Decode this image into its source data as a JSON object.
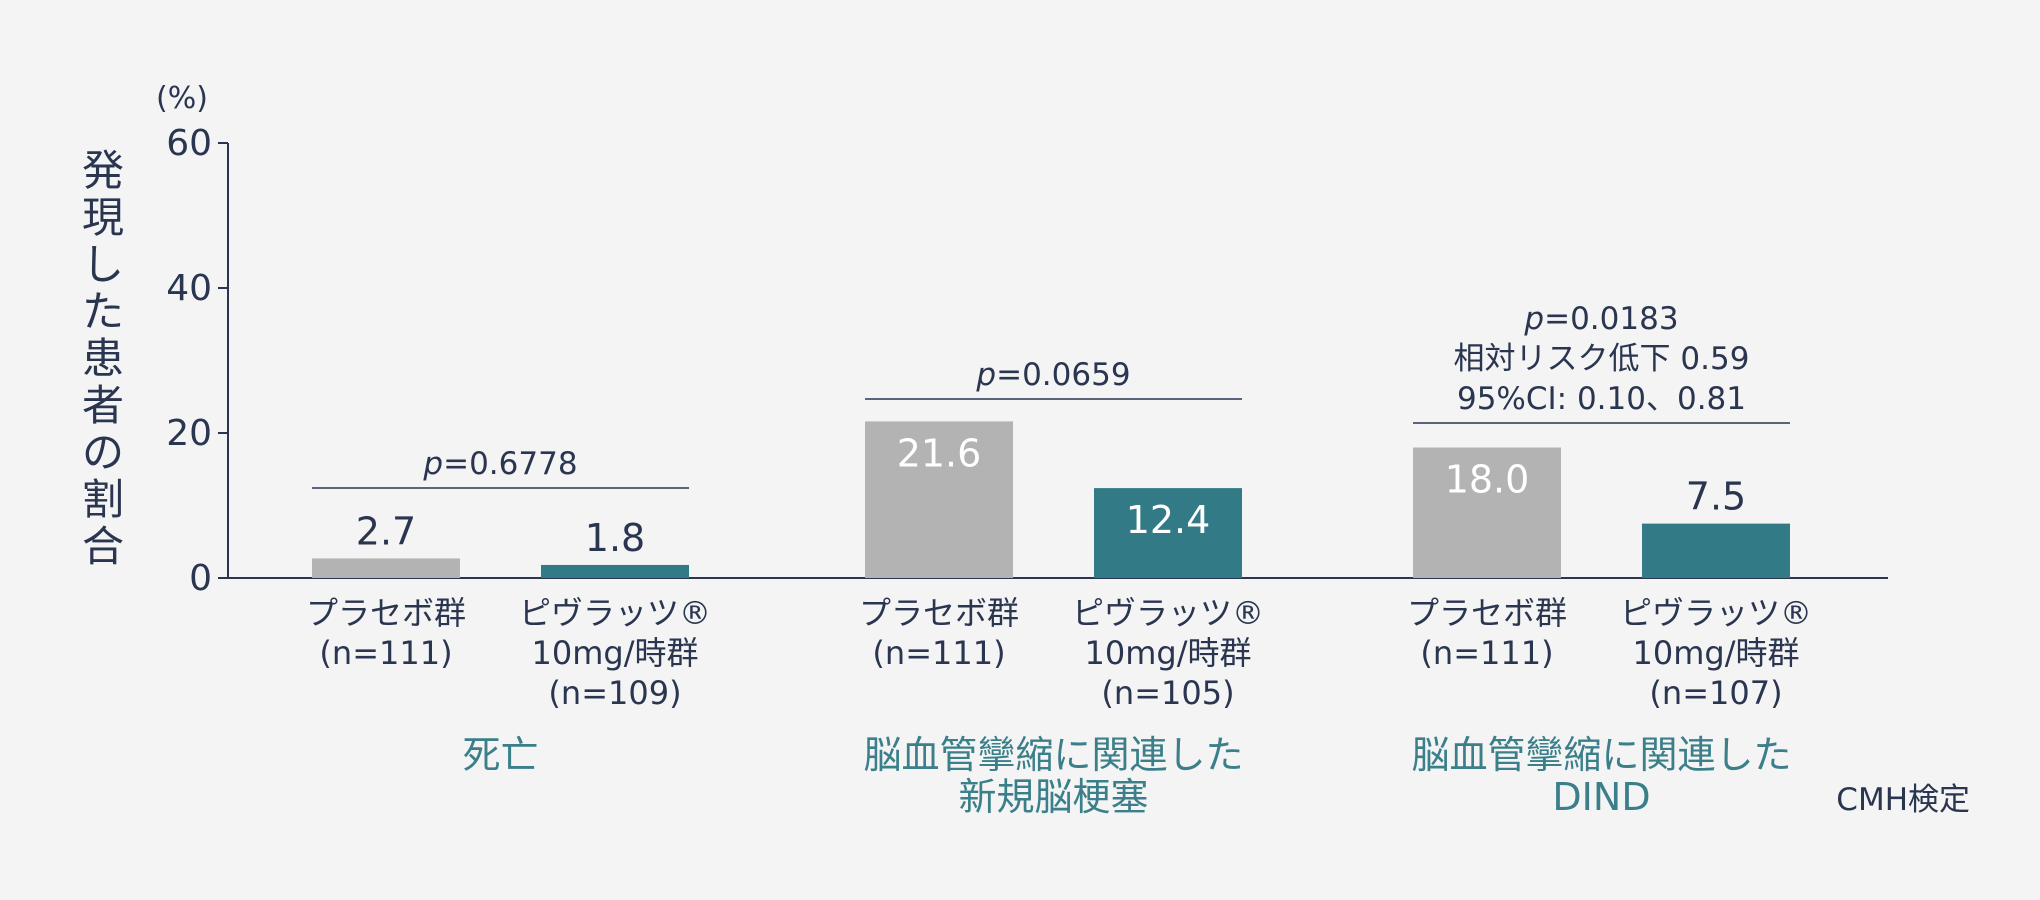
{
  "chart_data": {
    "type": "bar",
    "y_unit": "(%)",
    "ylabel": "発現した患者の割合",
    "ylim": [
      0,
      60
    ],
    "y_ticks": [
      0,
      20,
      40,
      60
    ],
    "grid": false,
    "groups": [
      {
        "label_lines": [
          "死亡"
        ],
        "bars": [
          {
            "label_lines": [
              "プラセボ群",
              "(n=111)"
            ],
            "value": 2.7,
            "value_label": "2.7"
          },
          {
            "label_lines": [
              "ピヴラッツ®",
              "10mg/時群",
              "(n=109)"
            ],
            "value": 1.8,
            "value_label": "1.8"
          }
        ],
        "stat_lines": [
          "p=0.6778"
        ]
      },
      {
        "label_lines": [
          "脳血管攣縮に関連した",
          "新規脳梗塞"
        ],
        "bars": [
          {
            "label_lines": [
              "プラセボ群",
              "(n=111)"
            ],
            "value": 21.6,
            "value_label": "21.6"
          },
          {
            "label_lines": [
              "ピヴラッツ®",
              "10mg/時群",
              "(n=105)"
            ],
            "value": 12.4,
            "value_label": "12.4"
          }
        ],
        "stat_lines": [
          "p=0.0659"
        ]
      },
      {
        "label_lines": [
          "脳血管攣縮に関連した",
          "DIND"
        ],
        "bars": [
          {
            "label_lines": [
              "プラセボ群",
              "(n=111)"
            ],
            "value": 18.0,
            "value_label": "18.0"
          },
          {
            "label_lines": [
              "ピヴラッツ®",
              "10mg/時群",
              "(n=107)"
            ],
            "value": 7.5,
            "value_label": "7.5"
          }
        ],
        "stat_lines": [
          "p=0.0183",
          "相対リスク低下 0.59",
          "95%CI: 0.10、0.81"
        ]
      }
    ],
    "footnote": "CMH検定"
  },
  "colors": {
    "placebo": "#b3b3b3",
    "treatment": "#327a86",
    "group_label": "#3a7f8a",
    "text": "#2a3550",
    "axis": "#2a3550",
    "background": "#f4f4f4"
  }
}
